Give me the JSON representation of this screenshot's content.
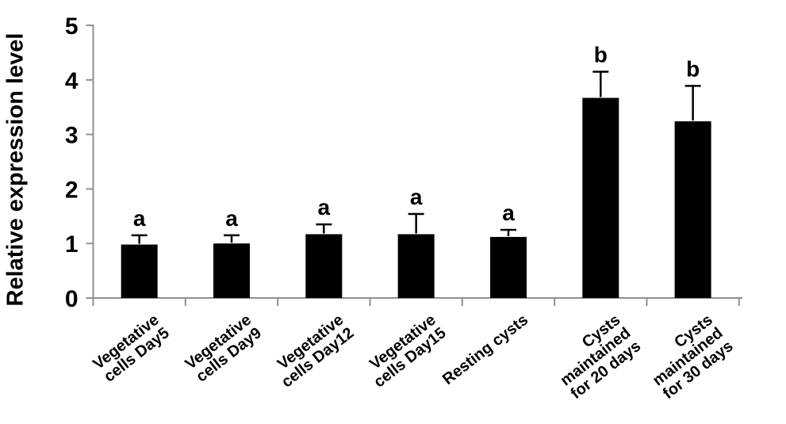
{
  "chart_data": {
    "type": "bar",
    "title": "",
    "ylabel": "Relative expression level",
    "xlabel": "",
    "ylim": [
      0,
      5
    ],
    "yticks": [
      0,
      1,
      2,
      3,
      4,
      5
    ],
    "categories": [
      "Vegetative\ncells Day5",
      "Vegetative\ncells Day9",
      "Vegetative\ncells Day12",
      "Vegetative\ncells Day15",
      "Resting cysts",
      "Cysts\nmaintained\nfor 20 days",
      "Cysts\nmaintained\nfor 30 days"
    ],
    "values": [
      0.98,
      1.0,
      1.17,
      1.17,
      1.12,
      3.67,
      3.24
    ],
    "errors_upper": [
      0.17,
      0.15,
      0.18,
      0.37,
      0.13,
      0.48,
      0.65
    ],
    "sig_labels": [
      "a",
      "a",
      "a",
      "a",
      "a",
      "b",
      "b"
    ],
    "legend_position": "none",
    "grid": false,
    "bar_color": "#000000",
    "axis_color": "#909090",
    "text_color": "#000000"
  }
}
